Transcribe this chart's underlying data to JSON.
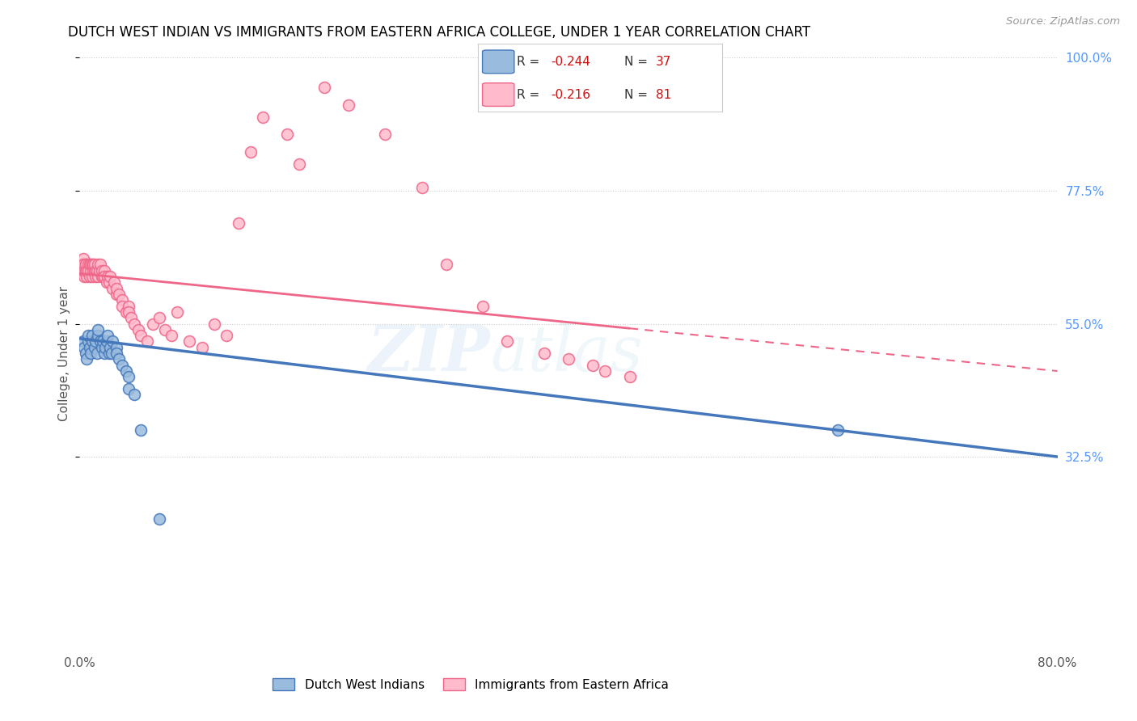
{
  "title": "DUTCH WEST INDIAN VS IMMIGRANTS FROM EASTERN AFRICA COLLEGE, UNDER 1 YEAR CORRELATION CHART",
  "source": "Source: ZipAtlas.com",
  "ylabel": "College, Under 1 year",
  "xlim": [
    0.0,
    0.8
  ],
  "ylim": [
    0.0,
    1.0
  ],
  "x_ticks": [
    0.0,
    0.1,
    0.2,
    0.3,
    0.4,
    0.5,
    0.6,
    0.7,
    0.8
  ],
  "x_tick_labels": [
    "0.0%",
    "",
    "",
    "",
    "",
    "",
    "",
    "",
    "80.0%"
  ],
  "y_tick_labels_right": [
    "100.0%",
    "77.5%",
    "55.0%",
    "32.5%"
  ],
  "y_ticks_right": [
    1.0,
    0.775,
    0.55,
    0.325
  ],
  "color_blue": "#99BBDD",
  "color_pink": "#FFBBCC",
  "color_blue_line": "#4477BB",
  "color_pink_line": "#EE6688",
  "watermark": "ZIPatlas",
  "blue_scatter_x": [
    0.003,
    0.004,
    0.005,
    0.006,
    0.007,
    0.007,
    0.008,
    0.009,
    0.01,
    0.01,
    0.012,
    0.013,
    0.014,
    0.015,
    0.015,
    0.017,
    0.018,
    0.019,
    0.02,
    0.021,
    0.022,
    0.023,
    0.024,
    0.025,
    0.026,
    0.027,
    0.03,
    0.03,
    0.032,
    0.035,
    0.038,
    0.04,
    0.04,
    0.045,
    0.05,
    0.065,
    0.62
  ],
  "blue_scatter_y": [
    0.52,
    0.51,
    0.5,
    0.49,
    0.52,
    0.53,
    0.51,
    0.5,
    0.52,
    0.53,
    0.51,
    0.52,
    0.5,
    0.53,
    0.54,
    0.52,
    0.51,
    0.52,
    0.5,
    0.51,
    0.52,
    0.53,
    0.5,
    0.51,
    0.5,
    0.52,
    0.51,
    0.5,
    0.49,
    0.48,
    0.47,
    0.46,
    0.44,
    0.43,
    0.37,
    0.22,
    0.37
  ],
  "pink_scatter_x": [
    0.001,
    0.002,
    0.002,
    0.003,
    0.003,
    0.004,
    0.004,
    0.005,
    0.005,
    0.005,
    0.006,
    0.006,
    0.007,
    0.007,
    0.008,
    0.008,
    0.009,
    0.009,
    0.01,
    0.01,
    0.011,
    0.011,
    0.012,
    0.012,
    0.013,
    0.013,
    0.014,
    0.015,
    0.015,
    0.016,
    0.017,
    0.018,
    0.018,
    0.019,
    0.02,
    0.02,
    0.022,
    0.023,
    0.024,
    0.025,
    0.027,
    0.028,
    0.03,
    0.03,
    0.032,
    0.035,
    0.035,
    0.038,
    0.04,
    0.04,
    0.042,
    0.045,
    0.048,
    0.05,
    0.055,
    0.06,
    0.065,
    0.07,
    0.075,
    0.08,
    0.09,
    0.1,
    0.11,
    0.12,
    0.13,
    0.14,
    0.15,
    0.17,
    0.18,
    0.2,
    0.22,
    0.25,
    0.28,
    0.3,
    0.33,
    0.35,
    0.38,
    0.4,
    0.42,
    0.43,
    0.45
  ],
  "pink_scatter_y": [
    0.64,
    0.65,
    0.64,
    0.66,
    0.65,
    0.63,
    0.64,
    0.65,
    0.64,
    0.65,
    0.63,
    0.64,
    0.65,
    0.64,
    0.63,
    0.65,
    0.64,
    0.65,
    0.63,
    0.65,
    0.64,
    0.65,
    0.64,
    0.65,
    0.64,
    0.63,
    0.64,
    0.65,
    0.63,
    0.64,
    0.65,
    0.63,
    0.64,
    0.63,
    0.64,
    0.63,
    0.62,
    0.63,
    0.62,
    0.63,
    0.61,
    0.62,
    0.6,
    0.61,
    0.6,
    0.59,
    0.58,
    0.57,
    0.58,
    0.57,
    0.56,
    0.55,
    0.54,
    0.53,
    0.52,
    0.55,
    0.56,
    0.54,
    0.53,
    0.57,
    0.52,
    0.51,
    0.55,
    0.53,
    0.72,
    0.84,
    0.9,
    0.87,
    0.82,
    0.95,
    0.92,
    0.87,
    0.78,
    0.65,
    0.58,
    0.52,
    0.5,
    0.49,
    0.48,
    0.47,
    0.46
  ],
  "blue_line_x0": 0.0,
  "blue_line_x1": 0.8,
  "blue_line_y0": 0.525,
  "blue_line_y1": 0.325,
  "pink_line_x0": 0.0,
  "pink_line_x1": 0.8,
  "pink_line_y0": 0.635,
  "pink_line_y1": 0.47
}
